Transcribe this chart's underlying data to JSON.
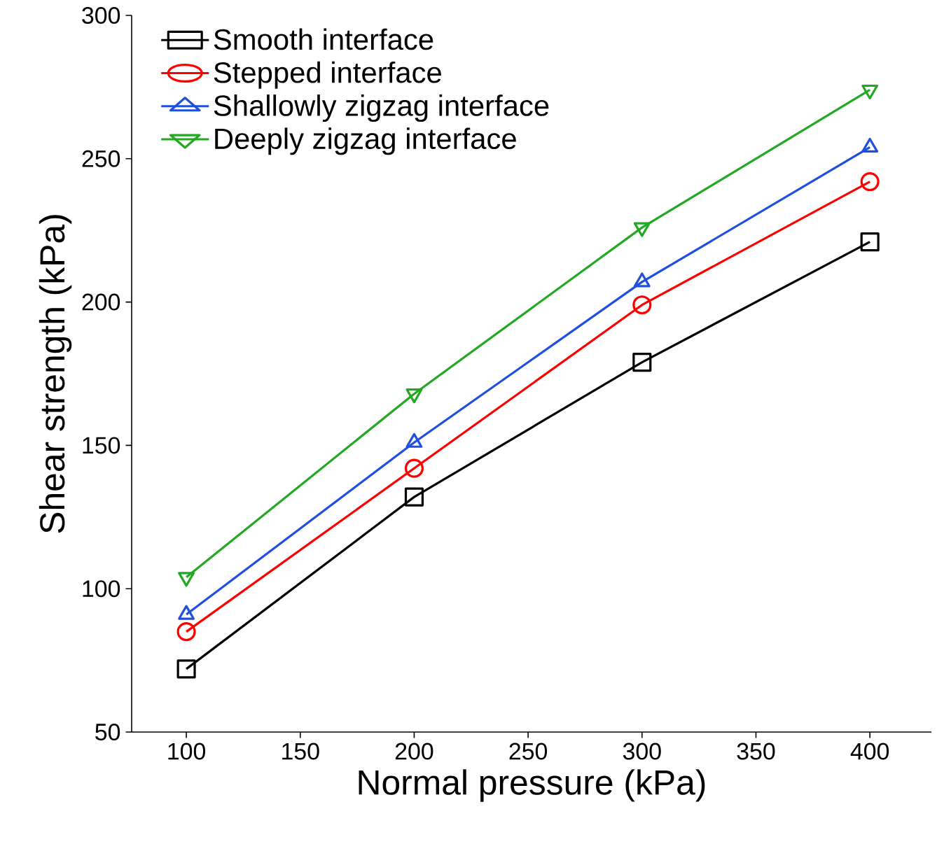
{
  "chart_data": {
    "type": "line",
    "xlabel": "Normal pressure (kPa)",
    "ylabel": "Shear strength  (kPa)",
    "x": [
      100,
      200,
      300,
      400
    ],
    "xlim": [
      76,
      427
    ],
    "xticks": [
      100,
      150,
      200,
      250,
      300,
      350,
      400
    ],
    "ylim": [
      50,
      300
    ],
    "yticks": [
      50,
      100,
      150,
      200,
      250,
      300
    ],
    "grid": false,
    "legend": "top left",
    "line_style": "solid",
    "series": [
      {
        "name": "Smooth interface",
        "color": "#000000",
        "marker": "square",
        "values": [
          72,
          132,
          179,
          221
        ]
      },
      {
        "name": "Stepped interface",
        "color": "#ff0000",
        "marker": "circle",
        "values": [
          85,
          142,
          199,
          242
        ]
      },
      {
        "name": "Shallowly zigzag interface",
        "color": "#1f4fe0",
        "marker": "triangle",
        "values": [
          91,
          151,
          207,
          254
        ]
      },
      {
        "name": "Deeply zigzag interface",
        "color": "#22a822",
        "marker": "triangle down",
        "values": [
          104,
          168,
          226,
          274
        ]
      }
    ]
  }
}
